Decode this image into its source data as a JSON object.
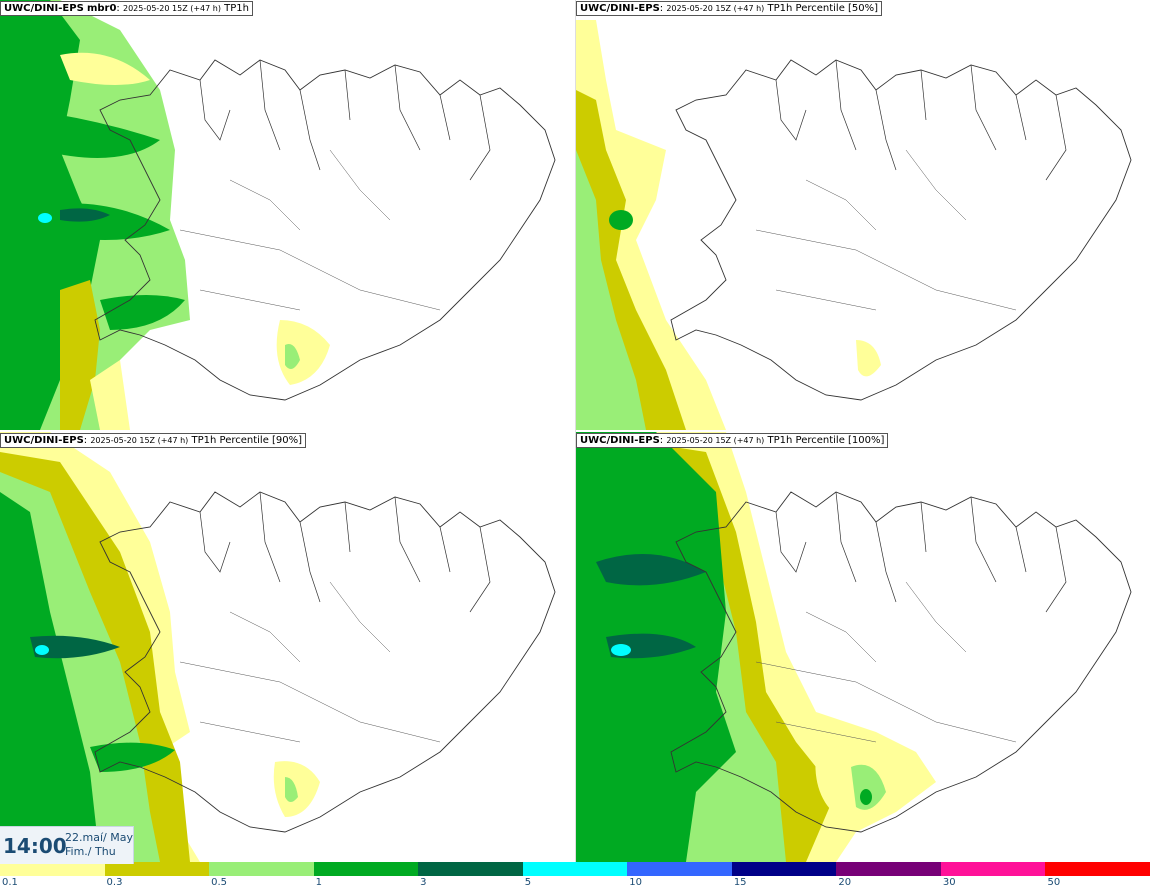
{
  "panels": [
    {
      "model": "UWC/DINI-EPS",
      "member": "mbr0",
      "run": "2025-05-20 15Z (+47 h)",
      "field": "TP1h"
    },
    {
      "model": "UWC/DINI-EPS",
      "member": "",
      "run": "2025-05-20 15Z (+47 h)",
      "field": "TP1h Percentile [50%]"
    },
    {
      "model": "UWC/DINI-EPS",
      "member": "",
      "run": "2025-05-20 15Z (+47 h)",
      "field": "TP1h Percentile [90%]"
    },
    {
      "model": "UWC/DINI-EPS",
      "member": "",
      "run": "2025-05-20 15Z (+47 h)",
      "field": "TP1h Percentile [100%]"
    }
  ],
  "time": {
    "clock": "14:00",
    "date_line1": "22.maí/ May",
    "date_line2": "Fim./ Thu"
  },
  "legend": {
    "labels": [
      "0.1",
      "0.3",
      "0.5",
      "1",
      "3",
      "5",
      "10",
      "15",
      "20",
      "30",
      "50"
    ],
    "colors": [
      "#ffff99",
      "#cccc00",
      "#99ee77",
      "#00aa22",
      "#006644",
      "#00ffff",
      "#3366ff",
      "#000088",
      "#770077",
      "#ff1199",
      "#ff0000"
    ]
  },
  "palette": {
    "light_yellow": "#ffff99",
    "olive": "#cccc00",
    "light_green": "#99ee77",
    "green": "#00aa22",
    "dark_green": "#006644",
    "cyan": "#00ffff"
  }
}
